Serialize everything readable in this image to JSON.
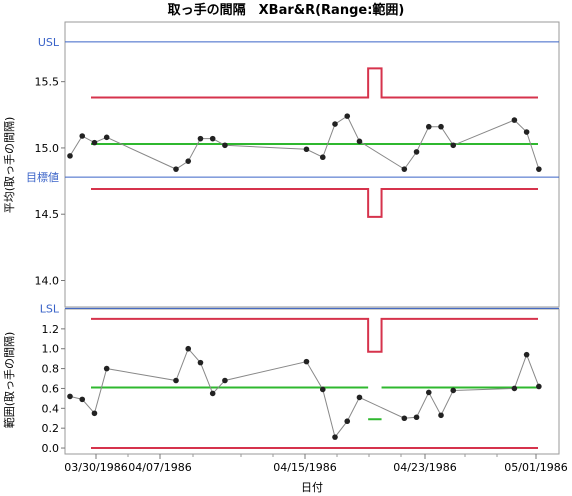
{
  "chart_data": {
    "type": "line",
    "title": "取っ手の間隔　XBar&R(Range:範囲)",
    "xlabel": "日付",
    "x_ticks": [
      "03/30/1986",
      "04/07/1986",
      "04/15/1986",
      "04/23/1986",
      "05/01/1986"
    ],
    "colors": {
      "limit": "#d6334c",
      "center": "#2fb82f",
      "spec": "#3a63c8",
      "point": "#222222",
      "connector": "#888888"
    },
    "panels": [
      {
        "name": "xbar",
        "ylabel": "平均(取っ手の間隔)",
        "ylim": [
          13.8,
          15.95
        ],
        "y_ticks": [
          "14.0",
          "14.5",
          "15.0",
          "15.5"
        ],
        "reference_lines": [
          {
            "label": "USL",
            "value": 15.8
          },
          {
            "label": "目標値",
            "value": 14.78
          },
          {
            "label": "LSL",
            "value": 13.79
          }
        ],
        "ucl_segments": [
          {
            "x0": 0,
            "x1": 0.62,
            "y": 15.38
          },
          {
            "x0": 0.62,
            "x1": 0.65,
            "y": 15.6
          },
          {
            "x0": 0.65,
            "x1": 1,
            "y": 15.38
          }
        ],
        "lcl_segments": [
          {
            "x0": 0,
            "x1": 0.62,
            "y": 14.69
          },
          {
            "x0": 0.62,
            "x1": 0.65,
            "y": 14.48
          },
          {
            "x0": 0.65,
            "x1": 1,
            "y": 14.69
          }
        ],
        "center": 15.03,
        "points": [
          {
            "x": 0,
            "y": 14.94
          },
          {
            "x": 0.03,
            "y": 15.09
          },
          {
            "x": 0.06,
            "y": 15.04
          },
          {
            "x": 0.09,
            "y": 15.08
          },
          {
            "x": 0.26,
            "y": 14.84
          },
          {
            "x": 0.29,
            "y": 14.9
          },
          {
            "x": 0.32,
            "y": 15.07
          },
          {
            "x": 0.35,
            "y": 15.07
          },
          {
            "x": 0.38,
            "y": 15.02
          },
          {
            "x": 0.58,
            "y": 14.99
          },
          {
            "x": 0.62,
            "y": 14.93
          },
          {
            "x": 0.65,
            "y": 15.18
          },
          {
            "x": 0.68,
            "y": 15.24
          },
          {
            "x": 0.71,
            "y": 15.05
          },
          {
            "x": 0.82,
            "y": 14.84
          },
          {
            "x": 0.85,
            "y": 14.97
          },
          {
            "x": 0.88,
            "y": 15.16
          },
          {
            "x": 0.91,
            "y": 15.16
          },
          {
            "x": 0.94,
            "y": 15.02
          },
          {
            "x": 1.09,
            "y": 15.21
          },
          {
            "x": 1.12,
            "y": 15.12
          },
          {
            "x": 1.15,
            "y": 14.84
          }
        ]
      },
      {
        "name": "range",
        "ylabel": "範囲(取っ手の間隔)",
        "ylim": [
          -0.06,
          1.4
        ],
        "y_ticks": [
          "0.0",
          "0.2",
          "0.4",
          "0.6",
          "0.8",
          "1.0",
          "1.2"
        ],
        "ucl_segments": [
          {
            "x0": 0,
            "x1": 0.62,
            "y": 1.3
          },
          {
            "x0": 0.62,
            "x1": 0.65,
            "y": 0.97
          },
          {
            "x0": 0.65,
            "x1": 1,
            "y": 1.3
          }
        ],
        "lcl": 0,
        "center_segments": [
          {
            "x0": 0,
            "x1": 0.62,
            "y": 0.61
          },
          {
            "x0": 0.62,
            "x1": 0.65,
            "y": 0.29
          },
          {
            "x0": 0.65,
            "x1": 1,
            "y": 0.61
          }
        ],
        "points": [
          {
            "x": 0,
            "y": 0.52
          },
          {
            "x": 0.03,
            "y": 0.49
          },
          {
            "x": 0.06,
            "y": 0.35
          },
          {
            "x": 0.09,
            "y": 0.8
          },
          {
            "x": 0.26,
            "y": 0.68
          },
          {
            "x": 0.29,
            "y": 1.0
          },
          {
            "x": 0.32,
            "y": 0.86
          },
          {
            "x": 0.35,
            "y": 0.55
          },
          {
            "x": 0.38,
            "y": 0.68
          },
          {
            "x": 0.58,
            "y": 0.87
          },
          {
            "x": 0.62,
            "y": 0.59
          },
          {
            "x": 0.65,
            "y": 0.11
          },
          {
            "x": 0.68,
            "y": 0.27
          },
          {
            "x": 0.71,
            "y": 0.51
          },
          {
            "x": 0.82,
            "y": 0.3
          },
          {
            "x": 0.85,
            "y": 0.31
          },
          {
            "x": 0.88,
            "y": 0.56
          },
          {
            "x": 0.91,
            "y": 0.33
          },
          {
            "x": 0.94,
            "y": 0.58
          },
          {
            "x": 1.09,
            "y": 0.6
          },
          {
            "x": 1.12,
            "y": 0.94
          },
          {
            "x": 1.15,
            "y": 0.62
          }
        ]
      }
    ]
  }
}
